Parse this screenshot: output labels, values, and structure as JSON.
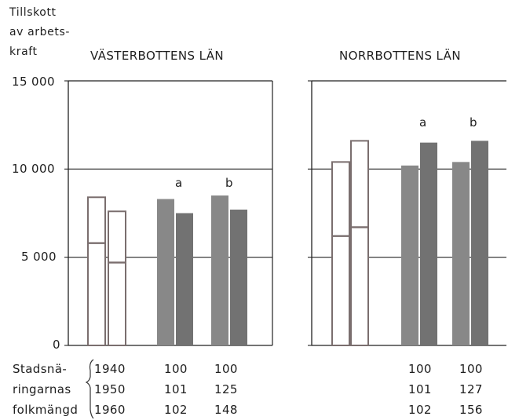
{
  "ylabel_lines": [
    "Tillskott",
    "av arbets-",
    "kraft"
  ],
  "yticks": [
    {
      "value": 0,
      "label": "0"
    },
    {
      "value": 5000,
      "label": "5 000"
    },
    {
      "value": 10000,
      "label": "10 000"
    },
    {
      "value": 15000,
      "label": "15 000"
    }
  ],
  "panels": [
    {
      "title": "VÄSTERBOTTENS LÄN",
      "group_labels": [
        "",
        "a",
        "b"
      ],
      "table_rows": [
        [
          "100",
          "100"
        ],
        [
          "101",
          "125"
        ],
        [
          "102",
          "148"
        ]
      ]
    },
    {
      "title": "NORRBOTTENS LÄN",
      "group_labels": [
        "",
        "a",
        "b"
      ],
      "table_rows": [
        [
          "100",
          "100"
        ],
        [
          "101",
          "127"
        ],
        [
          "102",
          "156"
        ]
      ]
    }
  ],
  "table": {
    "row_labels": [
      "Stadsnä-",
      "ringarnas",
      "folkmängd"
    ],
    "years": [
      "1940",
      "1950",
      "1960"
    ]
  },
  "chart_data": [
    {
      "type": "bar",
      "title": "VÄSTERBOTTENS LÄN",
      "ylabel": "Tillskott av arbets- kraft",
      "ylim": [
        0,
        15000
      ],
      "grid": true,
      "groups": [
        "",
        "a",
        "b"
      ],
      "bars": [
        {
          "group": "",
          "inner": 5800,
          "total": 8400,
          "style": "outline"
        },
        {
          "group": "",
          "inner": 4700,
          "total": 7600,
          "style": "outline"
        },
        {
          "group": "a",
          "value": 8300,
          "style": "filled"
        },
        {
          "group": "a",
          "value": 7500,
          "style": "filled"
        },
        {
          "group": "b",
          "value": 8500,
          "style": "filled"
        },
        {
          "group": "b",
          "value": 7700,
          "style": "filled"
        }
      ],
      "stadsnaringarnas_folkmangd": {
        "years": [
          "1940",
          "1950",
          "1960"
        ],
        "a": [
          100,
          101,
          102
        ],
        "b": [
          100,
          125,
          148
        ]
      }
    },
    {
      "type": "bar",
      "title": "NORRBOTTENS LÄN",
      "ylim": [
        0,
        15000
      ],
      "grid": true,
      "groups": [
        "",
        "a",
        "b"
      ],
      "bars": [
        {
          "group": "",
          "inner": 6200,
          "total": 10400,
          "style": "outline"
        },
        {
          "group": "",
          "inner": 6700,
          "total": 11600,
          "style": "outline"
        },
        {
          "group": "a",
          "value": 10200,
          "style": "filled"
        },
        {
          "group": "a",
          "value": 11500,
          "style": "filled"
        },
        {
          "group": "b",
          "value": 10400,
          "style": "filled"
        },
        {
          "group": "b",
          "value": 11600,
          "style": "filled"
        }
      ],
      "stadsnaringarnas_folkmangd": {
        "years": [
          "1940",
          "1950",
          "1960"
        ],
        "a": [
          100,
          101,
          102
        ],
        "b": [
          100,
          127,
          156
        ]
      }
    }
  ],
  "colors": {
    "outline": "#7a6e6e",
    "bar_light": "#888888",
    "bar_dark": "#727272",
    "axis": "#222222"
  }
}
